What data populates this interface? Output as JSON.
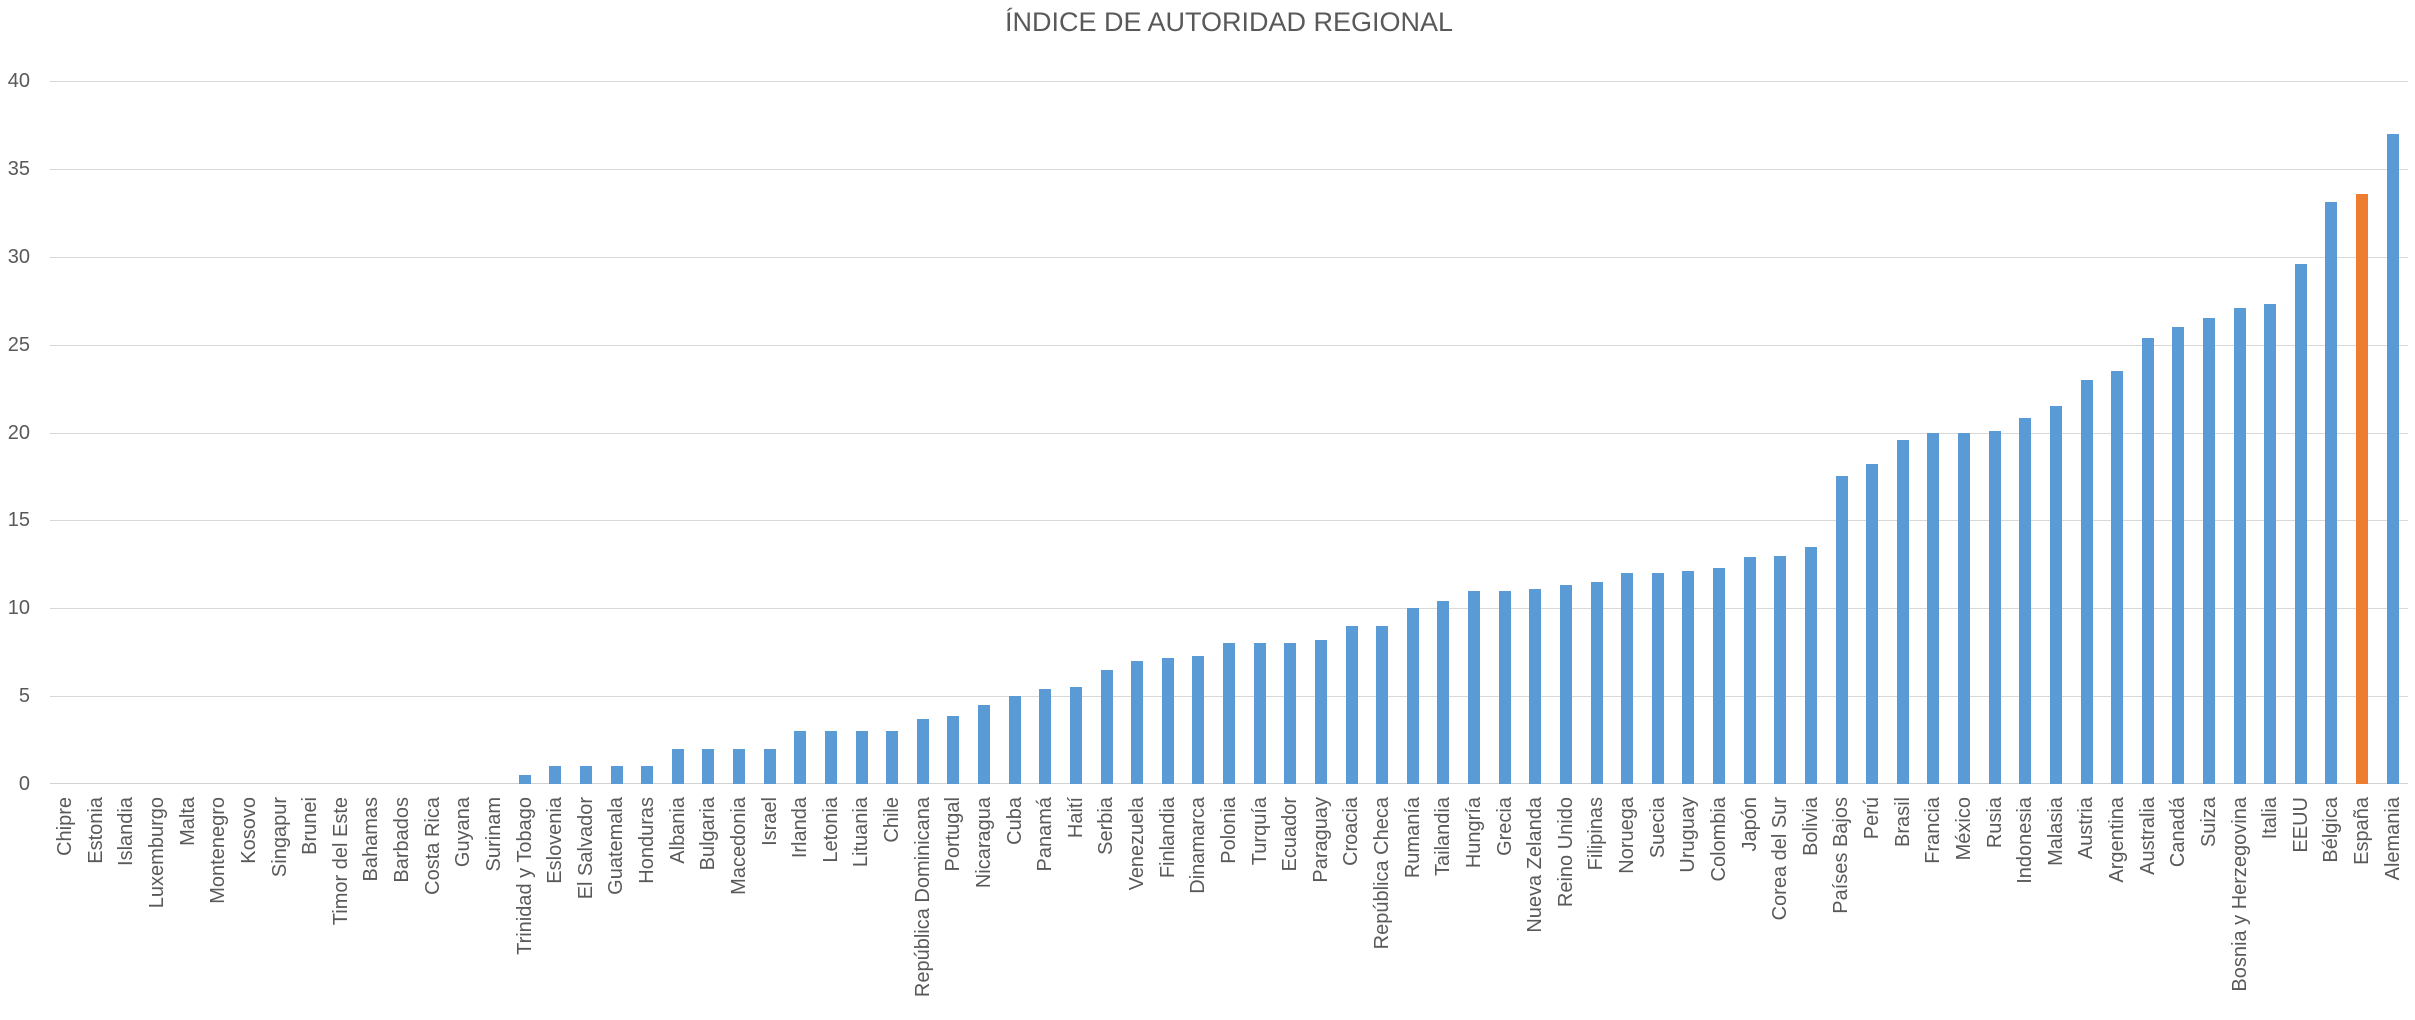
{
  "title": "ÍNDICE DE AUTORIDAD REGIONAL",
  "chart_data": {
    "type": "bar",
    "title": "ÍNDICE DE AUTORIDAD REGIONAL",
    "categories": [
      "Chipre",
      "Estonia",
      "Islandia",
      "Luxemburgo",
      "Malta",
      "Montenegro",
      "Kosovo",
      "Singapur",
      "Brunei",
      "Timor del Este",
      "Bahamas",
      "Barbados",
      "Costa Rica",
      "Guyana",
      "Surinam",
      "Trinidad y Tobago",
      "Eslovenia",
      "El Salvador",
      "Guatemala",
      "Honduras",
      "Albania",
      "Bulgaria",
      "Macedonia",
      "Israel",
      "Irlanda",
      "Letonia",
      "Lituania",
      "Chile",
      "República Dominicana",
      "Portugal",
      "Nicaragua",
      "Cuba",
      "Panamá",
      "Haití",
      "Serbia",
      "Venezuela",
      "Finlandia",
      "Dinamarca",
      "Polonia",
      "Turquía",
      "Ecuador",
      "Paraguay",
      "Croacia",
      "República Checa",
      "Rumanía",
      "Tailandia",
      "Hungría",
      "Grecia",
      "Nueva Zelanda",
      "Reino Unido",
      "Filipinas",
      "Noruega",
      "Suecia",
      "Uruguay",
      "Colombia",
      "Japón",
      "Corea del Sur",
      "Bolivia",
      "Países Bajos",
      "Perú",
      "Brasil",
      "Francia",
      "México",
      "Rusia",
      "Indonesia",
      "Malasia",
      "Austria",
      "Argentina",
      "Australia",
      "Canadá",
      "Suiza",
      "Bosnia y Herzegovina",
      "Italia",
      "EEUU",
      "Bélgica",
      "España",
      "Alemania"
    ],
    "values": [
      0,
      0,
      0,
      0,
      0,
      0,
      0,
      0,
      0,
      0,
      0,
      0,
      0,
      0,
      0,
      0.5,
      1,
      1,
      1,
      1,
      2,
      2,
      2,
      2,
      3,
      3,
      3,
      3,
      3.7,
      3.9,
      4.5,
      5,
      5.4,
      5.5,
      6.5,
      7,
      7.2,
      7.3,
      8,
      8,
      8,
      8.2,
      9,
      9,
      10,
      10.4,
      11,
      11,
      11.1,
      11.3,
      11.5,
      12,
      12,
      12.1,
      12.3,
      12.9,
      13,
      13.5,
      17.5,
      18.2,
      19.6,
      20,
      20,
      20.1,
      20.8,
      21.5,
      23,
      23.5,
      25.4,
      26,
      26.5,
      27.1,
      27.3,
      29.6,
      33.1,
      33.6,
      37
    ],
    "highlight_category": "España",
    "xlabel": "",
    "ylabel": "",
    "ylim": [
      0,
      40
    ],
    "yticks": [
      0,
      5,
      10,
      15,
      20,
      25,
      30,
      35,
      40
    ],
    "grid": true,
    "legend": false,
    "bar_color": "#5B9BD5",
    "highlight_color": "#ED7D31",
    "gridline_color": "#D9D9D9",
    "axis_line_color": "#D2D2D2",
    "text_color": "#595959"
  }
}
